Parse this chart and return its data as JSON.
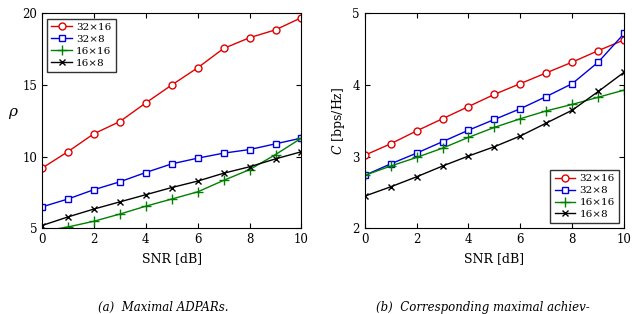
{
  "snr": [
    0,
    1,
    2,
    3,
    4,
    5,
    6,
    7,
    8,
    9,
    10
  ],
  "plot1": {
    "ylabel": "ρ",
    "xlabel": "SNR [dB]",
    "ylim": [
      5,
      20
    ],
    "yticks": [
      5,
      10,
      15,
      20
    ],
    "caption": "(a)  Maximal ADPARs.",
    "legend_loc": "upper left",
    "series": [
      {
        "label": "32×16",
        "color": "#e00000",
        "marker": "o",
        "markerfacecolor": "white",
        "values": [
          9.2,
          10.35,
          11.6,
          12.45,
          13.75,
          15.0,
          16.2,
          17.55,
          18.3,
          18.85,
          19.7
        ]
      },
      {
        "label": "32×8",
        "color": "#0000e0",
        "marker": "s",
        "markerfacecolor": "white",
        "values": [
          6.5,
          7.05,
          7.7,
          8.25,
          8.9,
          9.5,
          9.9,
          10.25,
          10.5,
          10.9,
          11.3
        ]
      },
      {
        "label": "16×16",
        "color": "#008000",
        "marker": "+",
        "markerfacecolor": "#008000",
        "values": [
          4.8,
          5.1,
          5.5,
          6.0,
          6.55,
          7.05,
          7.55,
          8.35,
          9.1,
          10.15,
          11.3
        ]
      },
      {
        "label": "16×8",
        "color": "#000000",
        "marker": "x",
        "markerfacecolor": "#000000",
        "values": [
          5.2,
          5.8,
          6.35,
          6.85,
          7.35,
          7.85,
          8.3,
          8.85,
          9.3,
          9.85,
          10.35
        ]
      }
    ]
  },
  "plot2": {
    "ylabel": "C [bps/Hz]",
    "xlabel": "SNR [dB]",
    "ylim": [
      2,
      5
    ],
    "yticks": [
      2,
      3,
      4,
      5
    ],
    "caption": "(b)  Corresponding maximal achiev-\nable rates.",
    "legend_loc": "lower right",
    "series": [
      {
        "label": "32×16",
        "color": "#e00000",
        "marker": "o",
        "markerfacecolor": "white",
        "values": [
          3.02,
          3.18,
          3.36,
          3.53,
          3.7,
          3.87,
          4.02,
          4.17,
          4.32,
          4.48,
          4.63
        ]
      },
      {
        "label": "32×8",
        "color": "#0000e0",
        "marker": "s",
        "markerfacecolor": "white",
        "values": [
          2.74,
          2.9,
          3.05,
          3.21,
          3.37,
          3.52,
          3.67,
          3.84,
          4.02,
          4.32,
          4.72
        ]
      },
      {
        "label": "16×16",
        "color": "#008000",
        "marker": "+",
        "markerfacecolor": "#008000",
        "values": [
          2.74,
          2.87,
          2.99,
          3.12,
          3.27,
          3.41,
          3.53,
          3.64,
          3.73,
          3.83,
          3.93
        ]
      },
      {
        "label": "16×8",
        "color": "#000000",
        "marker": "x",
        "markerfacecolor": "#000000",
        "values": [
          2.45,
          2.58,
          2.72,
          2.87,
          3.01,
          3.14,
          3.29,
          3.47,
          3.65,
          3.91,
          4.18
        ]
      }
    ]
  }
}
